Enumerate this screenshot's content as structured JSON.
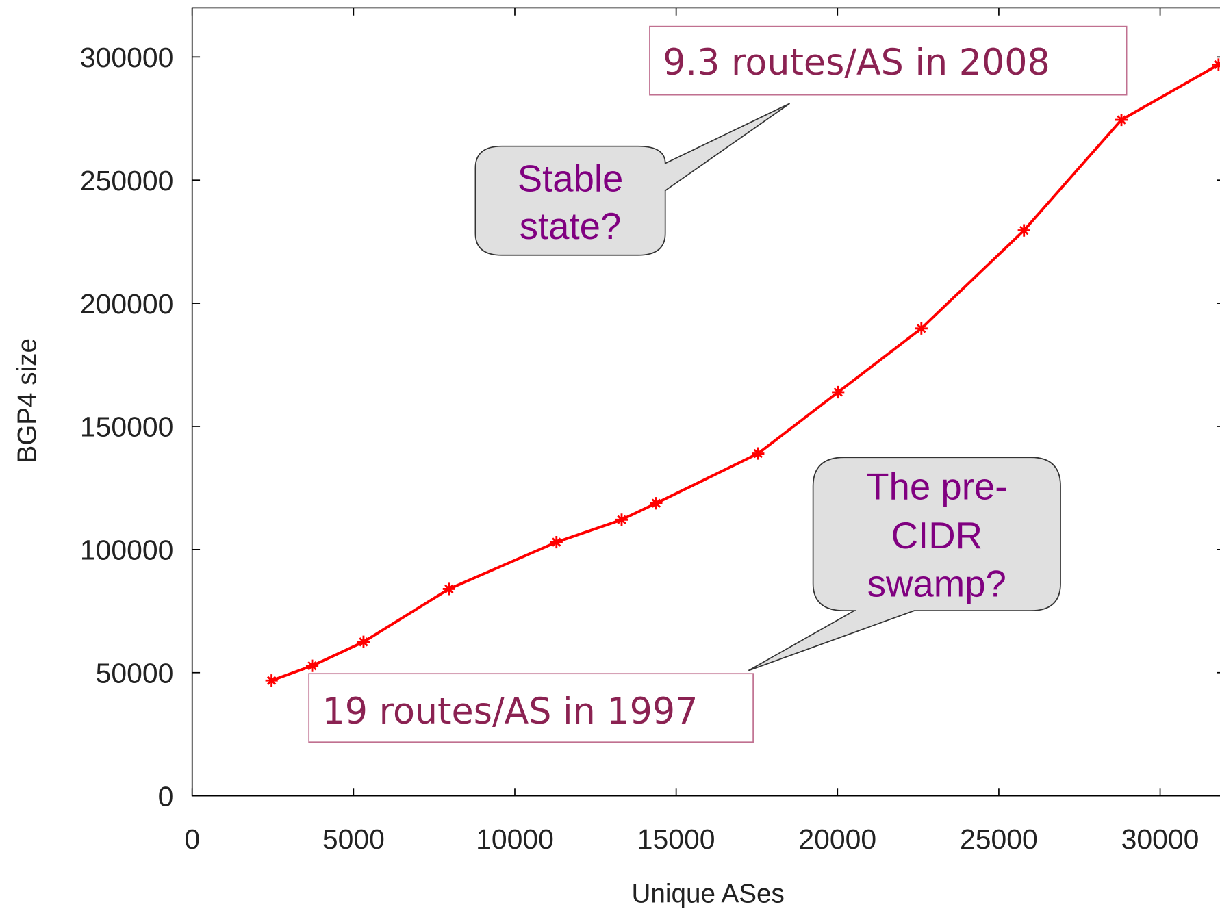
{
  "chart_data": {
    "type": "line",
    "xlabel": "Unique ASes",
    "ylabel": "BGP4 size",
    "x": [
      2460,
      3720,
      5310,
      7960,
      11290,
      13310,
      14380,
      17540,
      20020,
      22600,
      25780,
      28800,
      31810
    ],
    "series": [
      {
        "name": "BGP4 size",
        "color": "#ff0000",
        "values": [
          46800,
          52800,
          62500,
          84000,
          103000,
          112100,
          118800,
          139000,
          163900,
          189800,
          229600,
          274500,
          296900
        ]
      }
    ],
    "xlim": [
      0,
      32000
    ],
    "xticks": [
      0,
      5000,
      10000,
      15000,
      20000,
      25000,
      30000
    ],
    "ylim": [
      0,
      320000
    ],
    "yticks": [
      0,
      50000,
      100000,
      150000,
      200000,
      250000,
      300000
    ],
    "annotations": [
      "9.3 routes/AS in 2008",
      "19 routes/AS in 1997"
    ],
    "callouts": [
      [
        "Stable",
        "state?"
      ],
      [
        "The pre-",
        "CIDR",
        "swamp?"
      ]
    ]
  }
}
